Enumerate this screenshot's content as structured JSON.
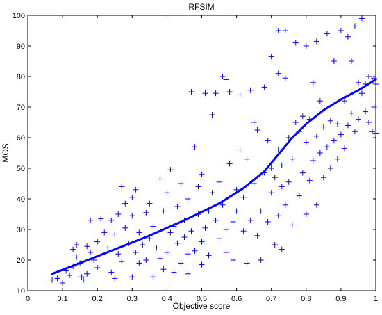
{
  "chart_data": {
    "type": "scatter",
    "title": "RFSIM",
    "xlabel": "Objective score",
    "ylabel": "MOS",
    "xlim": [
      0,
      1
    ],
    "ylim": [
      10,
      100
    ],
    "x_ticks": [
      "0",
      "0.1",
      "0.2",
      "0.3",
      "0.4",
      "0.5",
      "0.6",
      "0.7",
      "0.8",
      "0.9",
      "1"
    ],
    "y_ticks": [
      "10",
      "20",
      "30",
      "40",
      "50",
      "60",
      "70",
      "80",
      "90",
      "100"
    ],
    "grid": false,
    "legend": "none",
    "colors": {
      "points": "#0000ff",
      "fit": "#0000ff",
      "axes": "#000000"
    },
    "series": [
      {
        "kind": "scatter",
        "marker": "+",
        "points": [
          [
            0.07,
            13.5
          ],
          [
            0.085,
            14.0
          ],
          [
            0.1,
            12.5
          ],
          [
            0.11,
            16.5
          ],
          [
            0.12,
            15.0
          ],
          [
            0.13,
            18.0
          ],
          [
            0.13,
            23.5
          ],
          [
            0.14,
            21.0
          ],
          [
            0.14,
            25.0
          ],
          [
            0.15,
            19.0
          ],
          [
            0.155,
            14.5
          ],
          [
            0.16,
            13.5
          ],
          [
            0.17,
            15.5
          ],
          [
            0.17,
            24.5
          ],
          [
            0.18,
            22.5
          ],
          [
            0.18,
            33.0
          ],
          [
            0.19,
            20.0
          ],
          [
            0.2,
            17.5
          ],
          [
            0.2,
            26.0
          ],
          [
            0.21,
            33.5
          ],
          [
            0.22,
            29.0
          ],
          [
            0.23,
            24.0
          ],
          [
            0.24,
            16.0
          ],
          [
            0.24,
            33.0
          ],
          [
            0.25,
            28.5
          ],
          [
            0.25,
            14.0
          ],
          [
            0.26,
            22.0
          ],
          [
            0.26,
            35.0
          ],
          [
            0.27,
            19.5
          ],
          [
            0.27,
            44.0
          ],
          [
            0.28,
            30.5
          ],
          [
            0.28,
            38.5
          ],
          [
            0.29,
            25.5
          ],
          [
            0.3,
            14.5
          ],
          [
            0.3,
            34.5
          ],
          [
            0.3,
            40.5
          ],
          [
            0.31,
            22.5
          ],
          [
            0.31,
            43.0
          ],
          [
            0.32,
            29.0
          ],
          [
            0.32,
            19.0
          ],
          [
            0.33,
            25.0
          ],
          [
            0.34,
            20.0
          ],
          [
            0.34,
            35.5
          ],
          [
            0.35,
            27.0
          ],
          [
            0.35,
            38.5
          ],
          [
            0.36,
            14.5
          ],
          [
            0.36,
            31.0
          ],
          [
            0.37,
            24.0
          ],
          [
            0.38,
            20.5
          ],
          [
            0.38,
            46.5
          ],
          [
            0.39,
            17.0
          ],
          [
            0.39,
            36.0
          ],
          [
            0.4,
            22.5
          ],
          [
            0.4,
            42.0
          ],
          [
            0.41,
            29.0
          ],
          [
            0.41,
            49.5
          ],
          [
            0.42,
            16.0
          ],
          [
            0.42,
            31.0
          ],
          [
            0.43,
            25.5
          ],
          [
            0.43,
            37.5
          ],
          [
            0.44,
            19.0
          ],
          [
            0.44,
            45.0
          ],
          [
            0.45,
            33.0
          ],
          [
            0.45,
            27.5
          ],
          [
            0.46,
            15.5
          ],
          [
            0.46,
            22.0
          ],
          [
            0.46,
            40.0
          ],
          [
            0.47,
            29.5
          ],
          [
            0.47,
            75.0
          ],
          [
            0.48,
            23.0
          ],
          [
            0.48,
            57.0
          ],
          [
            0.49,
            35.0
          ],
          [
            0.49,
            44.0
          ],
          [
            0.5,
            18.5
          ],
          [
            0.5,
            26.0
          ],
          [
            0.5,
            48.0
          ],
          [
            0.51,
            30.5
          ],
          [
            0.51,
            74.5
          ],
          [
            0.52,
            36.0
          ],
          [
            0.52,
            21.5
          ],
          [
            0.53,
            42.0
          ],
          [
            0.53,
            67.5
          ],
          [
            0.54,
            33.0
          ],
          [
            0.54,
            74.5
          ],
          [
            0.55,
            27.0
          ],
          [
            0.55,
            45.5
          ],
          [
            0.56,
            38.0
          ],
          [
            0.56,
            80.0
          ],
          [
            0.57,
            22.5
          ],
          [
            0.57,
            30.0
          ],
          [
            0.57,
            79.0
          ],
          [
            0.58,
            51.5
          ],
          [
            0.58,
            75.0
          ],
          [
            0.59,
            32.5
          ],
          [
            0.59,
            20.0
          ],
          [
            0.6,
            36.0
          ],
          [
            0.6,
            43.0
          ],
          [
            0.61,
            56.0
          ],
          [
            0.61,
            74.0
          ],
          [
            0.62,
            29.5
          ],
          [
            0.62,
            40.5
          ],
          [
            0.63,
            19.0
          ],
          [
            0.63,
            53.0
          ],
          [
            0.64,
            33.0
          ],
          [
            0.64,
            75.5
          ],
          [
            0.65,
            45.0
          ],
          [
            0.65,
            65.0
          ],
          [
            0.66,
            28.0
          ],
          [
            0.66,
            62.5
          ],
          [
            0.67,
            20.0
          ],
          [
            0.67,
            36.0
          ],
          [
            0.68,
            48.5
          ],
          [
            0.68,
            76.5
          ],
          [
            0.69,
            32.5
          ],
          [
            0.69,
            59.0
          ],
          [
            0.7,
            42.0
          ],
          [
            0.7,
            50.0
          ],
          [
            0.7,
            86.5
          ],
          [
            0.71,
            25.0
          ],
          [
            0.71,
            47.0
          ],
          [
            0.72,
            34.5
          ],
          [
            0.72,
            56.0
          ],
          [
            0.72,
            81.0
          ],
          [
            0.72,
            95.0
          ],
          [
            0.73,
            23.5
          ],
          [
            0.73,
            44.0
          ],
          [
            0.73,
            51.0
          ],
          [
            0.74,
            38.0
          ],
          [
            0.74,
            79.5
          ],
          [
            0.74,
            95.0
          ],
          [
            0.75,
            45.5
          ],
          [
            0.75,
            60.0
          ],
          [
            0.76,
            31.5
          ],
          [
            0.76,
            53.0
          ],
          [
            0.77,
            65.0
          ],
          [
            0.77,
            91.0
          ],
          [
            0.78,
            41.0
          ],
          [
            0.78,
            62.0
          ],
          [
            0.79,
            48.5
          ],
          [
            0.79,
            67.0
          ],
          [
            0.8,
            35.0
          ],
          [
            0.8,
            58.5
          ],
          [
            0.8,
            90.0
          ],
          [
            0.81,
            46.0
          ],
          [
            0.81,
            66.0
          ],
          [
            0.82,
            52.5
          ],
          [
            0.82,
            78.0
          ],
          [
            0.83,
            38.0
          ],
          [
            0.83,
            60.5
          ],
          [
            0.83,
            91.5
          ],
          [
            0.84,
            55.0
          ],
          [
            0.84,
            72.0
          ],
          [
            0.85,
            47.0
          ],
          [
            0.85,
            63.5
          ],
          [
            0.86,
            57.0
          ],
          [
            0.86,
            94.0
          ],
          [
            0.87,
            50.0
          ],
          [
            0.87,
            65.5
          ],
          [
            0.88,
            59.0
          ],
          [
            0.88,
            85.0
          ],
          [
            0.89,
            53.0
          ],
          [
            0.89,
            64.5
          ],
          [
            0.9,
            61.0
          ],
          [
            0.9,
            95.0
          ],
          [
            0.91,
            56.5
          ],
          [
            0.91,
            72.0
          ],
          [
            0.92,
            64.0
          ],
          [
            0.92,
            93.0
          ],
          [
            0.93,
            68.0
          ],
          [
            0.93,
            85.0
          ],
          [
            0.94,
            62.0
          ],
          [
            0.94,
            96.5
          ],
          [
            0.95,
            66.0
          ],
          [
            0.95,
            78.0
          ],
          [
            0.96,
            74.5
          ],
          [
            0.96,
            99.0
          ],
          [
            0.97,
            68.5
          ],
          [
            0.97,
            77.5
          ],
          [
            0.98,
            65.0
          ],
          [
            0.98,
            80.0
          ],
          [
            0.99,
            62.0
          ],
          [
            0.99,
            78.5
          ],
          [
            0.995,
            70.0
          ],
          [
            0.995,
            79.5
          ],
          [
            1.0,
            61.5
          ],
          [
            1.0,
            77.5
          ]
        ]
      },
      {
        "kind": "line",
        "points": [
          [
            0.07,
            15.5
          ],
          [
            0.15,
            19.0
          ],
          [
            0.25,
            23.5
          ],
          [
            0.35,
            28.0
          ],
          [
            0.45,
            33.0
          ],
          [
            0.55,
            38.5
          ],
          [
            0.62,
            43.5
          ],
          [
            0.68,
            49.0
          ],
          [
            0.72,
            54.5
          ],
          [
            0.76,
            60.0
          ],
          [
            0.8,
            64.5
          ],
          [
            0.85,
            69.0
          ],
          [
            0.9,
            72.5
          ],
          [
            0.95,
            75.5
          ],
          [
            1.0,
            79.0
          ]
        ]
      }
    ]
  }
}
